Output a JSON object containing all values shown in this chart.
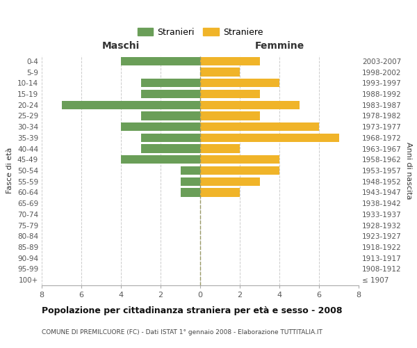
{
  "age_groups": [
    "100+",
    "95-99",
    "90-94",
    "85-89",
    "80-84",
    "75-79",
    "70-74",
    "65-69",
    "60-64",
    "55-59",
    "50-54",
    "45-49",
    "40-44",
    "35-39",
    "30-34",
    "25-29",
    "20-24",
    "15-19",
    "10-14",
    "5-9",
    "0-4"
  ],
  "birth_years": [
    "≤ 1907",
    "1908-1912",
    "1913-1917",
    "1918-1922",
    "1923-1927",
    "1928-1932",
    "1933-1937",
    "1938-1942",
    "1943-1947",
    "1948-1952",
    "1953-1957",
    "1958-1962",
    "1963-1967",
    "1968-1972",
    "1973-1977",
    "1978-1982",
    "1983-1987",
    "1988-1992",
    "1993-1997",
    "1998-2002",
    "2003-2007"
  ],
  "maschi": [
    0,
    0,
    0,
    0,
    0,
    0,
    0,
    0,
    1,
    1,
    1,
    4,
    3,
    3,
    4,
    3,
    7,
    3,
    3,
    0,
    4
  ],
  "femmine": [
    0,
    0,
    0,
    0,
    0,
    0,
    0,
    0,
    2,
    3,
    4,
    4,
    2,
    7,
    6,
    3,
    5,
    3,
    4,
    2,
    3
  ],
  "maschi_color": "#6a9e58",
  "femmine_color": "#f0b429",
  "title": "Popolazione per cittadinanza straniera per età e sesso - 2008",
  "subtitle": "COMUNE DI PREMILCUORE (FC) - Dati ISTAT 1° gennaio 2008 - Elaborazione TUTTITALIA.IT",
  "left_label": "Maschi",
  "right_label": "Femmine",
  "ylabel_left": "Fasce di età",
  "ylabel_right": "Anni di nascita",
  "legend_maschi": "Stranieri",
  "legend_femmine": "Straniere",
  "xlim": 8,
  "background_color": "#ffffff",
  "grid_color": "#cccccc",
  "center_line_color": "#999966"
}
